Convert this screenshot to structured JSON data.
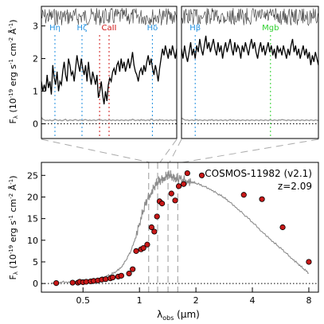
{
  "chart_data": [
    {
      "id": "top-left",
      "type": "line",
      "xlim": [
        0,
        1
      ],
      "ylim": [
        -0.45,
        3.6
      ],
      "y_ticks": [
        0,
        1,
        2,
        3
      ],
      "y_tick_labels": [
        "0",
        "1",
        "2",
        "3"
      ],
      "ylabel_parts": [
        "F",
        "λ",
        " (10",
        "-19",
        " erg s",
        "-1",
        " cm",
        "-2",
        " Å",
        "-1",
        ")"
      ],
      "zero_line": 0,
      "line_labels": [
        {
          "label": "Hη",
          "x": 0.1,
          "color": "#1f8fe0"
        },
        {
          "label": "Hζ",
          "x": 0.3,
          "color": "#1f8fe0"
        },
        {
          "label": "CaII",
          "x": 0.5,
          "color": "#d01818"
        },
        {
          "label": "",
          "x": 0.43,
          "color": "#d01818"
        },
        {
          "label": "Hδ",
          "x": 0.82,
          "color": "#1f8fe0"
        }
      ],
      "spectrum": [
        1.3,
        1.0,
        1.2,
        1.0,
        1.5,
        1.1,
        1.3,
        0.9,
        1.8,
        1.4,
        1.2,
        1.6,
        1.0,
        1.3,
        1.2,
        1.6,
        1.9,
        1.5,
        1.3,
        2.0,
        1.8,
        1.5,
        1.6,
        1.3,
        1.7,
        2.1,
        1.8,
        1.6,
        2.0,
        1.7,
        1.5,
        1.8,
        1.3,
        1.9,
        1.5,
        1.2,
        1.6,
        1.4,
        1.2,
        1.5,
        0.8,
        1.0,
        1.3,
        0.9,
        0.6,
        1.0,
        0.7,
        1.2,
        1.4,
        1.3,
        1.6,
        1.7,
        1.5,
        1.8,
        1.9,
        1.6,
        2.0,
        1.7,
        1.9,
        1.6,
        1.8,
        2.0,
        1.7,
        1.9,
        2.2,
        1.8,
        1.6,
        1.5,
        1.3,
        1.6,
        1.7,
        1.5,
        1.8,
        1.6,
        1.9,
        2.1,
        1.8,
        2.0,
        1.7,
        1.5,
        1.8,
        1.6,
        1.3,
        1.7,
        2.0,
        2.3,
        2.1,
        2.4,
        2.2,
        2.0,
        2.3,
        2.1,
        2.4,
        2.2,
        2.0,
        2.3
      ],
      "error": [
        0.2,
        0.14,
        0.12,
        0.1,
        0.11,
        0.1,
        0.12,
        0.1,
        0.1,
        0.12,
        0.13,
        0.11,
        0.1,
        0.12,
        0.1,
        0.1,
        0.12,
        0.14,
        0.1,
        0.1,
        0.12,
        0.11,
        0.1,
        0.12,
        0.13,
        0.11,
        0.1,
        0.12,
        0.11,
        0.1,
        0.12,
        0.13,
        0.11,
        0.1,
        0.12,
        0.1,
        0.11,
        0.12,
        0.1,
        0.11,
        0.13,
        0.11,
        0.12,
        0.1,
        0.11,
        0.12,
        0.1,
        0.11,
        0.12,
        0.1,
        0.12,
        0.11,
        0.1,
        0.12,
        0.11,
        0.1,
        0.12,
        0.11,
        0.1,
        0.12,
        0.11,
        0.1,
        0.12,
        0.11,
        0.14,
        0.12,
        0.1,
        0.11,
        0.12,
        0.1,
        0.13,
        0.11,
        0.12,
        0.1,
        0.11,
        0.12,
        0.1,
        0.15,
        0.12,
        0.1,
        0.11,
        0.12,
        0.1,
        0.13,
        0.11,
        0.12,
        0.1,
        0.11,
        0.12,
        0.1,
        0.11,
        0.12,
        0.1,
        0.11,
        0.12,
        0.1
      ]
    },
    {
      "id": "top-right",
      "type": "line",
      "xlim": [
        0,
        1
      ],
      "ylim": [
        -0.45,
        3.6
      ],
      "zero_line": 0,
      "line_labels": [
        {
          "label": "Hβ",
          "x": 0.1,
          "color": "#1f8fe0"
        },
        {
          "label": "Mgb",
          "x": 0.65,
          "color": "#30d030"
        }
      ],
      "spectrum": [
        2.3,
        2.0,
        2.4,
        2.1,
        1.9,
        2.2,
        2.5,
        2.1,
        2.3,
        2.0,
        2.4,
        2.2,
        2.6,
        2.3,
        2.1,
        2.4,
        2.7,
        2.3,
        2.5,
        2.2,
        2.4,
        2.6,
        2.3,
        2.1,
        2.5,
        2.2,
        2.4,
        2.0,
        2.3,
        2.5,
        2.2,
        2.4,
        2.6,
        2.3,
        2.1,
        2.5,
        2.2,
        2.4,
        2.3,
        2.0,
        2.4,
        2.2,
        2.5,
        2.3,
        2.1,
        2.4,
        2.6,
        2.3,
        2.5,
        2.2,
        2.0,
        2.3,
        2.5,
        2.2,
        2.4,
        2.1,
        2.3,
        2.5,
        2.2,
        2.4,
        2.1,
        2.3,
        2.0,
        2.4,
        2.2,
        2.3,
        2.1,
        2.4,
        2.2,
        2.0,
        2.3,
        2.1,
        2.4,
        2.6,
        2.2,
        2.4,
        2.1,
        2.3,
        2.0,
        2.2,
        2.4,
        2.1,
        2.3,
        2.0,
        2.2,
        1.8,
        2.1,
        1.9,
        2.2,
        2.0,
        1.8
      ],
      "error": [
        0.18,
        0.15,
        0.12,
        0.11,
        0.12,
        0.1,
        0.11,
        0.12,
        0.1,
        0.11,
        0.13,
        0.1,
        0.12,
        0.11,
        0.1,
        0.12,
        0.11,
        0.1,
        0.12,
        0.11,
        0.13,
        0.1,
        0.11,
        0.12,
        0.1,
        0.11,
        0.12,
        0.1,
        0.11,
        0.12,
        0.1,
        0.11,
        0.13,
        0.1,
        0.12,
        0.11,
        0.1,
        0.12,
        0.11,
        0.1,
        0.12,
        0.11,
        0.1,
        0.12,
        0.11,
        0.1,
        0.12,
        0.11,
        0.1,
        0.12,
        0.11,
        0.1,
        0.12,
        0.11,
        0.1,
        0.12,
        0.11,
        0.1,
        0.12,
        0.11,
        0.1,
        0.12,
        0.11,
        0.1,
        0.12,
        0.11,
        0.13,
        0.12,
        0.11,
        0.1,
        0.12,
        0.11,
        0.1,
        0.12,
        0.11,
        0.1,
        0.12,
        0.11,
        0.1,
        0.12,
        0.11,
        0.1,
        0.12,
        0.11,
        0.1,
        0.12,
        0.11,
        0.1,
        0.12,
        0.11,
        0.1
      ]
    },
    {
      "id": "bottom-sed",
      "type": "scatter",
      "x_scale": "log",
      "xlim": [
        0.3,
        9.0
      ],
      "ylim": [
        -2,
        28
      ],
      "x_ticks": [
        0.5,
        1,
        2,
        4,
        8
      ],
      "x_tick_labels": [
        "0.5",
        "1",
        "2",
        "4",
        "8"
      ],
      "y_ticks": [
        0,
        5,
        10,
        15,
        20,
        25
      ],
      "y_tick_labels": [
        "0",
        "5",
        "10",
        "15",
        "20",
        "25"
      ],
      "xlabel_parts": [
        "λ",
        "obs",
        " (μm)"
      ],
      "ylabel_parts": [
        "F",
        "λ",
        " (10",
        "-19",
        " erg s",
        "-1",
        " cm",
        "-2",
        " Å",
        "-1",
        ")"
      ],
      "annotation": [
        "COSMOS-11982 (v2.1)",
        "z=2.09"
      ],
      "zero_line": 0,
      "dashed_marks": [
        1.12,
        1.25,
        1.42,
        1.6
      ],
      "model_x": [
        0.34,
        0.38,
        0.42,
        0.46,
        0.5,
        0.55,
        0.6,
        0.65,
        0.7,
        0.75,
        0.8,
        0.85,
        0.9,
        0.95,
        1.0,
        1.05,
        1.1,
        1.15,
        1.2,
        1.25,
        1.3,
        1.35,
        1.4,
        1.45,
        1.5,
        1.55,
        1.6,
        1.7,
        1.8,
        1.9,
        2.0,
        2.2,
        2.4,
        2.6,
        2.8,
        3.0,
        3.3,
        3.6,
        4.0,
        4.5,
        5.0,
        5.5,
        6.0,
        6.5,
        7.0,
        7.5,
        8.0
      ],
      "model_y": [
        0.2,
        0.3,
        0.4,
        0.5,
        0.6,
        0.8,
        1.1,
        1.5,
        2.0,
        2.8,
        3.8,
        5.5,
        7.5,
        10.5,
        14.0,
        17.0,
        19.5,
        21.0,
        22.5,
        23.5,
        24.0,
        24.5,
        25.0,
        25.2,
        24.8,
        24.5,
        24.2,
        24.0,
        23.8,
        23.5,
        23.2,
        22.5,
        21.8,
        20.8,
        20.0,
        19.0,
        17.5,
        16.0,
        14.2,
        12.0,
        10.2,
        8.6,
        7.2,
        5.8,
        4.6,
        3.4,
        2.4
      ],
      "photometry_x": [
        0.36,
        0.44,
        0.47,
        0.48,
        0.5,
        0.52,
        0.55,
        0.57,
        0.6,
        0.63,
        0.66,
        0.7,
        0.72,
        0.77,
        0.8,
        0.88,
        0.92,
        0.96,
        1.02,
        1.05,
        1.1,
        1.16,
        1.2,
        1.24,
        1.28,
        1.32,
        1.48,
        1.55,
        1.62,
        1.72,
        1.8,
        2.15,
        3.6,
        4.5,
        5.8,
        8.0
      ],
      "photometry_y": [
        0.1,
        0.2,
        0.2,
        0.4,
        0.3,
        0.4,
        0.5,
        0.6,
        0.7,
        0.9,
        1.0,
        1.2,
        1.4,
        1.6,
        1.8,
        2.3,
        3.3,
        7.5,
        7.9,
        8.2,
        9.0,
        13.0,
        12.0,
        15.5,
        19.0,
        18.5,
        20.8,
        19.2,
        22.5,
        23.0,
        25.5,
        25.0,
        20.5,
        19.5,
        13.0,
        5.0
      ]
    }
  ]
}
